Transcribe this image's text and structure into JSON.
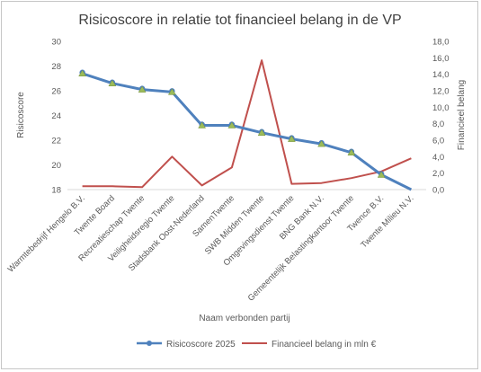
{
  "chart_data": {
    "type": "line",
    "title": "Risicoscore in relatie tot financieel belang in de VP",
    "xlabel": "Naam verbonden partij",
    "ylabel": "Risicoscore",
    "y2label": "Financieel belang",
    "ylim": [
      18,
      30
    ],
    "y_ticks": [
      "18",
      "20",
      "22",
      "24",
      "26",
      "28",
      "30"
    ],
    "y2lim": [
      0,
      18
    ],
    "y2_ticks": [
      "0,0",
      "2,0",
      "4,0",
      "6,0",
      "8,0",
      "10,0",
      "12,0",
      "14,0",
      "16,0",
      "18,0"
    ],
    "grid": false,
    "legend_position": "bottom",
    "categories": [
      "Warmtebedrijf Hengelo B.V.",
      "Twente Board",
      "Recreatieschap Twente",
      "Veiligheidsregio Twente",
      "Stadsbank Oost-Nederland",
      "SamenTwente",
      "SWB Midden Twente",
      "Omgevingsdienst Twente",
      "BNG Bank N.V.",
      "Gemeentelijk Belastingkantoor Twente",
      "Twence B.V.",
      "Twente Milieu N.V."
    ],
    "series": [
      {
        "name": "Risicoscore 2025",
        "axis": "left",
        "color": "#4f81bd",
        "marker": "triangle",
        "values": [
          27.4,
          26.6,
          26.1,
          25.9,
          23.2,
          23.2,
          22.6,
          22.1,
          21.7,
          21.0,
          19.2,
          17.8
        ]
      },
      {
        "name": "Financieel belang in mln €",
        "axis": "right",
        "color": "#c0504d",
        "marker": "none",
        "values": [
          0.4,
          0.4,
          0.3,
          4.0,
          0.5,
          2.7,
          15.7,
          0.7,
          0.8,
          1.4,
          2.2,
          3.8
        ]
      }
    ]
  }
}
